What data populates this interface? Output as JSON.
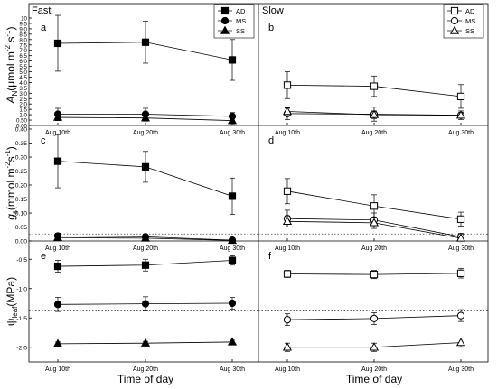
{
  "figure": {
    "x_axis_label": "Time of day",
    "group_labels": {
      "fast": "Fast",
      "slow": "Slow"
    },
    "reference_lines": {
      "gs": 0.025,
      "psi": -1.38
    }
  },
  "chart_data": [
    {
      "type": "line",
      "panel": "a",
      "group": "Fast",
      "row": "A",
      "ylabel": "A_N (μmol m⁻² s⁻¹)",
      "categories": [
        "Aug 10th",
        "Aug 20th",
        "Aug 30th"
      ],
      "ylim": [
        0,
        10
      ],
      "yticks": [
        "0.00",
        "0.50",
        "1.0",
        "1.5",
        "2.0",
        "2.5",
        "3.0",
        "3.5",
        "4.0",
        "4.5",
        "5.0",
        "5.5",
        "6.0",
        "6.5",
        "7.0",
        "7.5",
        "8.0",
        "8.5",
        "9.0",
        "9.5",
        "10"
      ],
      "legend": "top-right",
      "series": [
        {
          "name": "AD",
          "marker": "square",
          "filled": true,
          "values": [
            7.65,
            7.75,
            6.1
          ],
          "err": [
            2.6,
            1.95,
            1.9
          ]
        },
        {
          "name": "MS",
          "marker": "circle",
          "filled": true,
          "values": [
            1.05,
            1.05,
            0.85
          ],
          "err": [
            0.55,
            0.55,
            0.35
          ]
        },
        {
          "name": "SS",
          "marker": "triangle",
          "filled": true,
          "values": [
            0.75,
            0.7,
            0.45
          ],
          "err": [
            0.3,
            0.3,
            0.3
          ]
        }
      ]
    },
    {
      "type": "line",
      "panel": "b",
      "group": "Slow",
      "row": "A",
      "categories": [
        "Aug 10th",
        "Aug 20th",
        "Aug 30th"
      ],
      "ylim": [
        0,
        10
      ],
      "legend": "top-right",
      "series": [
        {
          "name": "AD",
          "marker": "square",
          "filled": false,
          "values": [
            3.75,
            3.65,
            2.7
          ],
          "err": [
            1.25,
            0.95,
            1.1
          ]
        },
        {
          "name": "MS",
          "marker": "circle",
          "filled": false,
          "values": [
            1.1,
            1.05,
            0.95
          ],
          "err": [
            0.55,
            0.65,
            0.4
          ]
        },
        {
          "name": "SS",
          "marker": "triangle",
          "filled": false,
          "values": [
            1.3,
            1.0,
            0.95
          ],
          "err": [
            0.3,
            0.35,
            0.25
          ]
        }
      ]
    },
    {
      "type": "line",
      "panel": "c",
      "group": "Fast",
      "row": "gs",
      "ylabel": "g_s (mmol m⁻² s⁻¹)",
      "categories": [
        "Aug 10th",
        "Aug 20th",
        "Aug 30th"
      ],
      "ylim": [
        0,
        0.4
      ],
      "yticks": [
        "0.00",
        "0.05",
        "0.10",
        "0.15",
        "0.20",
        "0.25",
        "0.30",
        "0.35",
        "0.40"
      ],
      "series": [
        {
          "name": "AD",
          "marker": "square",
          "filled": true,
          "values": [
            0.285,
            0.265,
            0.16
          ],
          "err": [
            0.095,
            0.055,
            0.065
          ]
        },
        {
          "name": "MS",
          "marker": "circle",
          "filled": true,
          "values": [
            0.018,
            0.015,
            0.003
          ],
          "err": [
            0.01,
            0.008,
            0.004
          ]
        },
        {
          "name": "SS",
          "marker": "triangle",
          "filled": true,
          "values": [
            0.012,
            0.01,
            0.002
          ],
          "err": [
            0.006,
            0.005,
            0.002
          ]
        }
      ]
    },
    {
      "type": "line",
      "panel": "d",
      "group": "Slow",
      "row": "gs",
      "categories": [
        "Aug 10th",
        "Aug 20th",
        "Aug 30th"
      ],
      "ylim": [
        0,
        0.4
      ],
      "series": [
        {
          "name": "AD",
          "marker": "square",
          "filled": false,
          "values": [
            0.178,
            0.125,
            0.078
          ],
          "err": [
            0.045,
            0.04,
            0.025
          ]
        },
        {
          "name": "MS",
          "marker": "circle",
          "filled": false,
          "values": [
            0.08,
            0.075,
            0.015
          ],
          "err": [
            0.03,
            0.025,
            0.012
          ]
        },
        {
          "name": "SS",
          "marker": "triangle",
          "filled": false,
          "values": [
            0.07,
            0.065,
            0.01
          ],
          "err": [
            0.02,
            0.02,
            0.008
          ]
        }
      ]
    },
    {
      "type": "line",
      "panel": "e",
      "group": "Fast",
      "row": "psi",
      "ylabel": "ψ_leaf (MPa)",
      "categories": [
        "Aug 10th",
        "Aug 20th",
        "Aug 30th"
      ],
      "ylim": [
        -2.25,
        -0.25
      ],
      "yticks": [
        "-0.5",
        "-1.0",
        "-1.5",
        "-2.0"
      ],
      "series": [
        {
          "name": "AD",
          "marker": "square",
          "filled": true,
          "values": [
            -0.62,
            -0.6,
            -0.52
          ],
          "err": [
            0.1,
            0.1,
            0.08
          ]
        },
        {
          "name": "MS",
          "marker": "circle",
          "filled": true,
          "values": [
            -1.27,
            -1.26,
            -1.25
          ],
          "err": [
            0.12,
            0.12,
            0.1
          ]
        },
        {
          "name": "SS",
          "marker": "triangle",
          "filled": true,
          "values": [
            -1.94,
            -1.93,
            -1.91
          ],
          "err": [
            0.03,
            0.03,
            0.03
          ]
        }
      ]
    },
    {
      "type": "line",
      "panel": "f",
      "group": "Slow",
      "row": "psi",
      "categories": [
        "Aug 10th",
        "Aug 20th",
        "Aug 30th"
      ],
      "ylim": [
        -2.25,
        -0.25
      ],
      "series": [
        {
          "name": "AD",
          "marker": "square",
          "filled": false,
          "values": [
            -0.75,
            -0.76,
            -0.74
          ],
          "err": [
            0.06,
            0.07,
            0.08
          ]
        },
        {
          "name": "MS",
          "marker": "circle",
          "filled": false,
          "values": [
            -1.53,
            -1.51,
            -1.46
          ],
          "err": [
            0.1,
            0.1,
            0.1
          ]
        },
        {
          "name": "SS",
          "marker": "triangle",
          "filled": false,
          "values": [
            -2.0,
            -2.0,
            -1.92
          ],
          "err": [
            0.07,
            0.07,
            0.08
          ]
        }
      ]
    }
  ]
}
